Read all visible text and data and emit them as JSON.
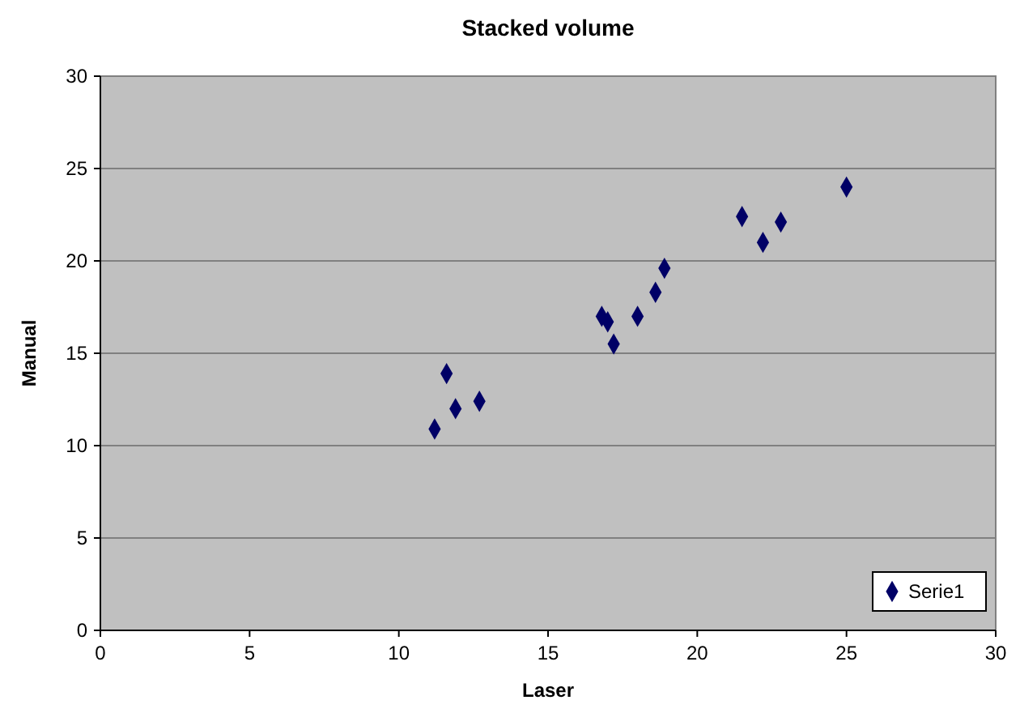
{
  "chart_data": {
    "type": "scatter",
    "title": "Stacked volume",
    "xlabel": "Laser",
    "ylabel": "Manual",
    "x": [
      11.2,
      11.6,
      11.9,
      12.7,
      16.8,
      17.0,
      17.2,
      18.0,
      18.6,
      18.9,
      21.5,
      22.2,
      22.8,
      25.0
    ],
    "series": [
      {
        "name": "Serie1",
        "color": "#000066",
        "values": [
          10.9,
          13.9,
          12.0,
          12.4,
          17.0,
          16.7,
          15.5,
          17.0,
          18.3,
          19.6,
          22.4,
          21.0,
          22.1,
          24.0
        ]
      }
    ],
    "xlim": [
      0,
      30
    ],
    "xticks": [
      0,
      5,
      10,
      15,
      20,
      25,
      30
    ],
    "ylim": [
      0,
      30
    ],
    "yticks": [
      0,
      5,
      10,
      15,
      20,
      25,
      30
    ],
    "grid": "y",
    "legend": "bottom right",
    "marker": "diamond"
  }
}
